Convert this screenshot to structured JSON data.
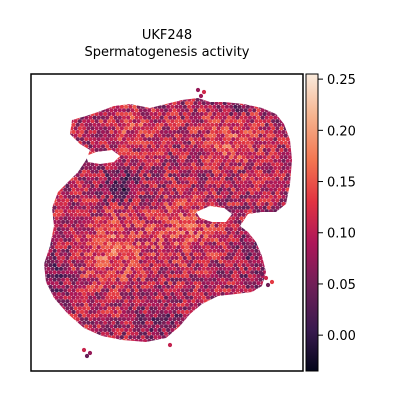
{
  "chart_data": {
    "type": "heatmap",
    "subtype": "spatial-hexbin",
    "title_line1": "UKF248",
    "title_line2": "Spermatogenesis activity",
    "xlabel": "",
    "ylabel": "",
    "axes_ticks_visible": false,
    "grid": false,
    "colormap": "rocket",
    "colormap_stops": [
      "#03051a",
      "#3a1a4f",
      "#701f57",
      "#ad1759",
      "#e13342",
      "#f37651",
      "#f6b48f",
      "#faebdd"
    ],
    "colorbar": {
      "placement": "right",
      "range": [
        -0.035,
        0.255
      ],
      "ticks": [
        0.0,
        0.05,
        0.1,
        0.15,
        0.2,
        0.25
      ],
      "tick_labels": [
        "0.00",
        "0.05",
        "0.10",
        "0.15",
        "0.20",
        "0.25"
      ]
    },
    "value_range_shown": [
      -0.035,
      0.255
    ],
    "dominant_value_range": [
      0.05,
      0.2
    ]
  }
}
